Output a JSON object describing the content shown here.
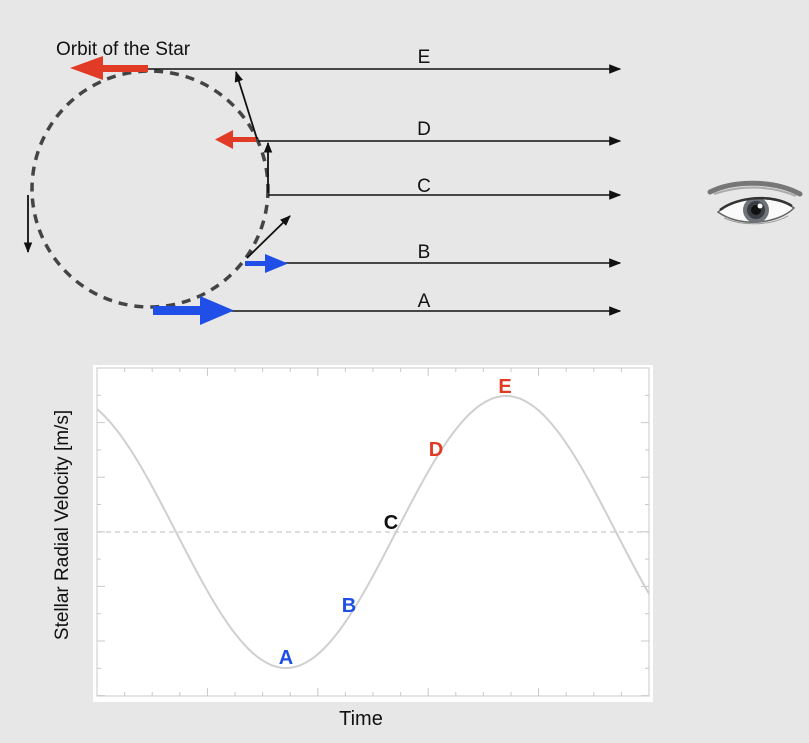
{
  "diagram": {
    "orbit_label": "Orbit of the Star",
    "line_labels": [
      "E",
      "D",
      "C",
      "B",
      "A"
    ],
    "observer_icon": "eye-icon",
    "colors": {
      "background": "#e7e7e7",
      "approaching": "#1f4fe6",
      "receding": "#e23b25",
      "neutral": "#111111",
      "orbit": "#444444"
    }
  },
  "chart_data": {
    "type": "line",
    "ylabel": "Stellar Radial Velocity [m/s]",
    "xlabel": "Time",
    "curve": "sinusoid",
    "zero_line": "dashed",
    "points": [
      {
        "label": "A",
        "phase": "minimum",
        "color": "#1f4fe6"
      },
      {
        "label": "B",
        "phase": "rising",
        "color": "#1f4fe6"
      },
      {
        "label": "C",
        "phase": "zero crossing",
        "color": "#111111"
      },
      {
        "label": "D",
        "phase": "rising",
        "color": "#e23b25"
      },
      {
        "label": "E",
        "phase": "maximum",
        "color": "#e23b25"
      }
    ]
  }
}
